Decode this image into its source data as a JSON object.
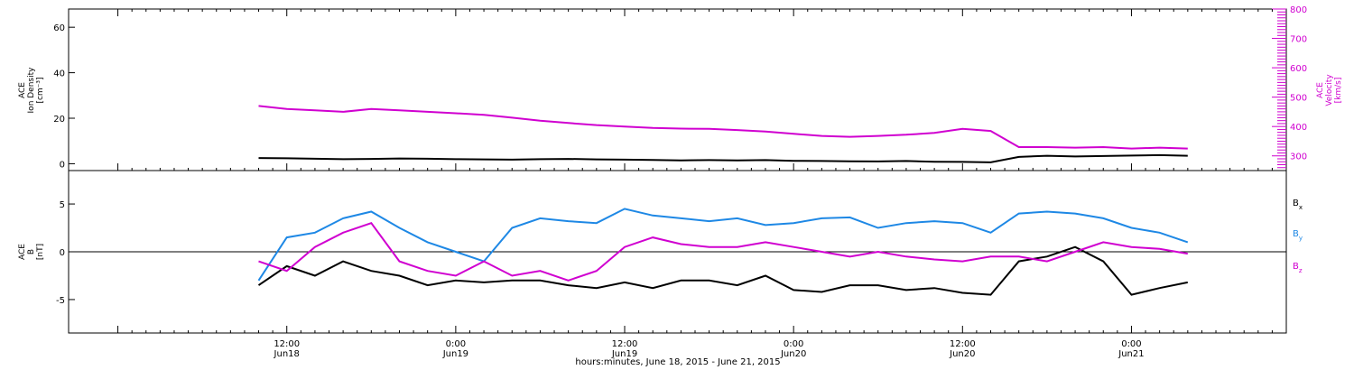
{
  "footer": {
    "xlabel": "hours:minutes, June 18, 2015 - June 21, 2015"
  },
  "colors": {
    "black": "#000000",
    "magenta": "#d000d0",
    "blue": "#1e88e5"
  },
  "time_axis": {
    "range_hours": [
      -15.5,
      71.0
    ],
    "ticks": [
      {
        "t": 0,
        "label": "12:00",
        "sub": "Jun18"
      },
      {
        "t": 12,
        "label": "0:00",
        "sub": "Jun19"
      },
      {
        "t": 24,
        "label": "12:00",
        "sub": "Jun19"
      },
      {
        "t": 36,
        "label": "0:00",
        "sub": "Jun20"
      },
      {
        "t": 48,
        "label": "12:00",
        "sub": "Jun20"
      },
      {
        "t": 60,
        "label": "0:00",
        "sub": "Jun21"
      }
    ]
  },
  "chart_data": [
    {
      "type": "scatter",
      "ylabel": "ACE Ion Density [cm^-3]",
      "ylabel_lines": [
        "ACE",
        "Ion Density",
        "[cm⁻³]"
      ],
      "y2label_lines": [
        "ACE",
        "Velocity",
        "[km/s]"
      ],
      "ylim": [
        -3,
        68
      ],
      "yticks": [
        0,
        20,
        40,
        60
      ],
      "y2lim": [
        250,
        800
      ],
      "y2ticks": [
        300,
        400,
        500,
        600,
        700,
        800
      ],
      "series": [
        {
          "axis": "left",
          "color_key": "black",
          "x": [
            -2,
            0,
            2,
            4,
            6,
            8,
            10,
            12,
            14,
            16,
            18,
            20,
            22,
            24,
            26,
            28,
            30,
            32,
            34,
            36,
            38,
            40,
            42,
            44,
            46,
            48,
            50,
            52,
            54,
            56,
            58,
            60,
            62,
            64
          ],
          "y": [
            2.5,
            2.4,
            2.2,
            2.0,
            2.1,
            2.3,
            2.2,
            2.0,
            1.9,
            1.8,
            2.0,
            2.1,
            1.9,
            1.8,
            1.7,
            1.5,
            1.6,
            1.5,
            1.6,
            1.3,
            1.2,
            1.1,
            1.0,
            1.2,
            0.9,
            0.8,
            0.6,
            3.0,
            3.5,
            3.2,
            3.4,
            3.6,
            3.8,
            3.5
          ]
        },
        {
          "axis": "right",
          "color_key": "magenta",
          "x": [
            -2,
            0,
            2,
            4,
            6,
            8,
            10,
            12,
            14,
            16,
            18,
            20,
            22,
            24,
            26,
            28,
            30,
            32,
            34,
            36,
            38,
            40,
            42,
            44,
            46,
            48,
            50,
            52,
            54,
            56,
            58,
            60,
            62,
            64
          ],
          "y": [
            470,
            460,
            455,
            450,
            460,
            455,
            450,
            445,
            440,
            430,
            420,
            412,
            405,
            400,
            395,
            393,
            392,
            388,
            383,
            375,
            368,
            365,
            368,
            372,
            378,
            392,
            385,
            330,
            330,
            328,
            330,
            325,
            328,
            325
          ]
        }
      ]
    },
    {
      "type": "scatter",
      "ylabel": "ACE B [nT]",
      "ylabel_lines": [
        "ACE",
        "B",
        "[nT]"
      ],
      "ylim": [
        -8.5,
        8.5
      ],
      "yticks": [
        -5,
        0,
        5
      ],
      "series": [
        {
          "name": "Bx",
          "label_main": "B",
          "label_sub": "x",
          "color_key": "black",
          "x": [
            -2,
            0,
            2,
            4,
            6,
            8,
            10,
            12,
            14,
            16,
            18,
            20,
            22,
            24,
            26,
            28,
            30,
            32,
            34,
            36,
            38,
            40,
            42,
            44,
            46,
            48,
            50,
            52,
            54,
            56,
            58,
            60,
            62,
            64
          ],
          "y": [
            -3.5,
            -1.5,
            -2.5,
            -1.0,
            -2.0,
            -2.5,
            -3.5,
            -3.0,
            -3.2,
            -3.0,
            -3.0,
            -3.5,
            -3.8,
            -3.2,
            -3.8,
            -3.0,
            -3.0,
            -3.5,
            -2.5,
            -4.0,
            -4.2,
            -3.5,
            -3.5,
            -4.0,
            -3.8,
            -4.3,
            -4.5,
            -1.0,
            -0.5,
            0.5,
            -1.0,
            -4.5,
            -3.8,
            -3.2
          ]
        },
        {
          "name": "By",
          "label_main": "B",
          "label_sub": "y",
          "color_key": "blue",
          "x": [
            -2,
            0,
            2,
            4,
            6,
            8,
            10,
            12,
            14,
            16,
            18,
            20,
            22,
            24,
            26,
            28,
            30,
            32,
            34,
            36,
            38,
            40,
            42,
            44,
            46,
            48,
            50,
            52,
            54,
            56,
            58,
            60,
            62,
            64
          ],
          "y": [
            -3.0,
            1.5,
            2.0,
            3.5,
            4.2,
            2.5,
            1.0,
            0.0,
            -1.0,
            2.5,
            3.5,
            3.2,
            3.0,
            4.5,
            3.8,
            3.5,
            3.2,
            3.5,
            2.8,
            3.0,
            3.5,
            3.6,
            2.5,
            3.0,
            3.2,
            3.0,
            2.0,
            4.0,
            4.2,
            4.0,
            3.5,
            2.5,
            2.0,
            1.0
          ]
        },
        {
          "name": "Bz",
          "label_main": "B",
          "label_sub": "z",
          "color_key": "magenta",
          "x": [
            -2,
            0,
            2,
            4,
            6,
            8,
            10,
            12,
            14,
            16,
            18,
            20,
            22,
            24,
            26,
            28,
            30,
            32,
            34,
            36,
            38,
            40,
            42,
            44,
            46,
            48,
            50,
            52,
            54,
            56,
            58,
            60,
            62,
            64
          ],
          "y": [
            -1.0,
            -2.0,
            0.5,
            2.0,
            3.0,
            -1.0,
            -2.0,
            -2.5,
            -1.0,
            -2.5,
            -2.0,
            -3.0,
            -2.0,
            0.5,
            1.5,
            0.8,
            0.5,
            0.5,
            1.0,
            0.5,
            0.0,
            -0.5,
            0.0,
            -0.5,
            -0.8,
            -1.0,
            -0.5,
            -0.5,
            -1.0,
            0.0,
            1.0,
            0.5,
            0.3,
            -0.2
          ]
        }
      ]
    }
  ]
}
